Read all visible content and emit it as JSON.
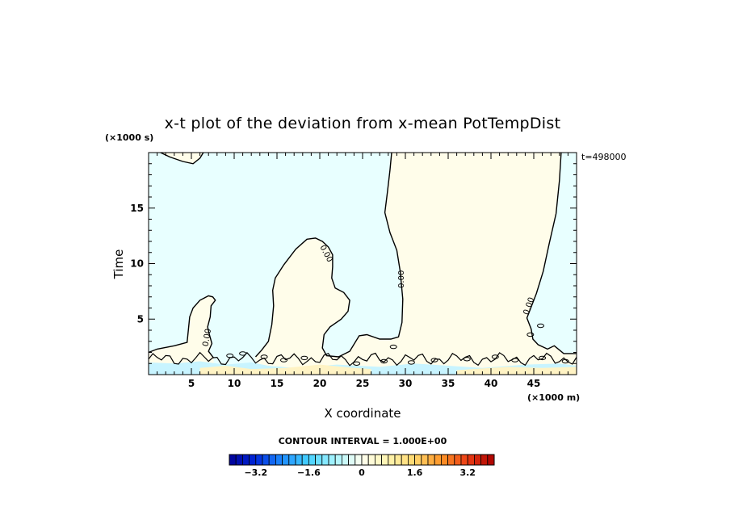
{
  "chart_data": {
    "type": "heatmap",
    "subtype": "contour",
    "title": "x-t plot of the deviation from x-mean PotTempDist",
    "xlabel": "X coordinate",
    "ylabel": "Time",
    "x_unit": "(×1000 m)",
    "y_unit": "(×1000 s)",
    "time_stamp": "t=498000",
    "xlim": [
      0,
      50
    ],
    "ylim": [
      0,
      20
    ],
    "x_ticks": [
      5,
      10,
      15,
      20,
      25,
      30,
      35,
      40,
      45
    ],
    "y_ticks": [
      5,
      10,
      15
    ],
    "contour_interval_text": "CONTOUR INTERVAL = 1.000E+00",
    "contour_label": "0.00",
    "colorbar": {
      "min": -4.0,
      "max": 4.0,
      "step": 0.2,
      "tick_values": [
        -3.2,
        -1.6,
        0,
        1.6,
        3.2
      ],
      "tick_labels": [
        "−3.2",
        "−1.6",
        "0",
        "1.6",
        "3.2"
      ]
    },
    "regions": [
      {
        "name": "negative",
        "value": -0.1,
        "color": "#e8ffff"
      },
      {
        "name": "positive",
        "value": 0.1,
        "color": "#fffdea"
      },
      {
        "name": "weak positive band",
        "value": 0.5,
        "color": "#fff3c4"
      },
      {
        "name": "negative band",
        "value": -0.6,
        "color": "#c8f4ff"
      }
    ],
    "zero_contour_paths": [
      [
        [
          0,
          2.0
        ],
        [
          1,
          2.3
        ],
        [
          3,
          2.6
        ],
        [
          4.5,
          2.9
        ],
        [
          4.8,
          5.2
        ],
        [
          5.2,
          6.0
        ],
        [
          6,
          6.7
        ],
        [
          7,
          7.1
        ],
        [
          7.5,
          7.0
        ],
        [
          7.8,
          6.7
        ],
        [
          7.3,
          6.2
        ],
        [
          7.2,
          5.2
        ],
        [
          6.9,
          4.3
        ],
        [
          7.1,
          3.6
        ],
        [
          7.4,
          2.8
        ],
        [
          7.0,
          2.1
        ],
        [
          7.6,
          1.5
        ]
      ],
      [
        [
          12.5,
          1.6
        ],
        [
          13.2,
          2.2
        ],
        [
          14.0,
          3.0
        ],
        [
          14.4,
          4.5
        ],
        [
          14.6,
          6.2
        ],
        [
          14.5,
          7.6
        ],
        [
          14.8,
          8.7
        ],
        [
          15.8,
          9.9
        ],
        [
          17.2,
          11.3
        ],
        [
          18.5,
          12.2
        ],
        [
          19.5,
          12.3
        ],
        [
          20.3,
          12.0
        ],
        [
          21.0,
          11.5
        ],
        [
          21.5,
          10.8
        ],
        [
          21.5,
          9.7
        ],
        [
          21.4,
          8.7
        ],
        [
          21.8,
          7.8
        ],
        [
          22.8,
          7.4
        ],
        [
          23.5,
          6.7
        ],
        [
          23.3,
          5.7
        ],
        [
          22.5,
          5.0
        ],
        [
          21.2,
          4.3
        ],
        [
          20.5,
          3.6
        ],
        [
          20.3,
          2.4
        ],
        [
          20.8,
          1.7
        ],
        [
          22.2,
          1.6
        ],
        [
          23.5,
          2.1
        ],
        [
          24.6,
          3.5
        ],
        [
          25.5,
          3.6
        ],
        [
          27.0,
          3.2
        ],
        [
          28.3,
          3.2
        ],
        [
          29.2,
          3.4
        ],
        [
          29.6,
          4.7
        ],
        [
          29.7,
          6.8
        ],
        [
          29.4,
          9.3
        ],
        [
          29.0,
          11.2
        ],
        [
          28.2,
          12.8
        ],
        [
          27.6,
          14.6
        ],
        [
          27.9,
          16.4
        ],
        [
          28.2,
          18.4
        ],
        [
          28.4,
          20.0
        ]
      ],
      [
        [
          48.2,
          20.0
        ],
        [
          48.0,
          17.5
        ],
        [
          47.6,
          14.5
        ],
        [
          46.8,
          11.8
        ],
        [
          46.1,
          9.3
        ],
        [
          45.3,
          7.3
        ],
        [
          44.2,
          5.1
        ],
        [
          44.7,
          4.1
        ],
        [
          44.9,
          3.2
        ],
        [
          45.5,
          2.7
        ],
        [
          46.6,
          2.3
        ],
        [
          47.4,
          2.6
        ],
        [
          48.5,
          1.9
        ],
        [
          50.0,
          1.9
        ]
      ],
      [
        [
          1.4,
          20.0
        ],
        [
          2.5,
          19.6
        ],
        [
          4.0,
          19.2
        ],
        [
          5.2,
          19.0
        ],
        [
          6.0,
          19.5
        ],
        [
          6.4,
          20.0
        ]
      ]
    ]
  }
}
